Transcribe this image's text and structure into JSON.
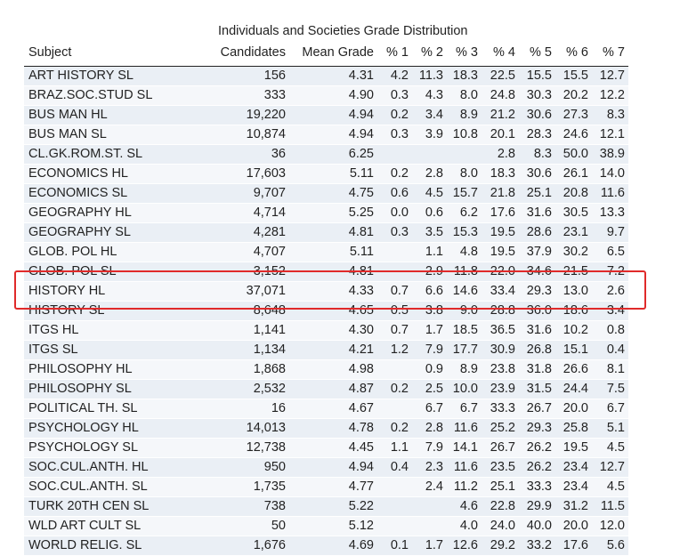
{
  "title": "Individuals and Societies Grade Distribution",
  "headers": [
    "Subject",
    "Candidates",
    "Mean Grade",
    "% 1",
    "% 2",
    "% 3",
    "% 4",
    "% 5",
    "% 6",
    "% 7"
  ],
  "rows": [
    [
      "ART HISTORY SL",
      "156",
      "4.31",
      "4.2",
      "11.3",
      "18.3",
      "22.5",
      "15.5",
      "15.5",
      "12.7"
    ],
    [
      "BRAZ.SOC.STUD SL",
      "333",
      "4.90",
      "0.3",
      "4.3",
      "8.0",
      "24.8",
      "30.3",
      "20.2",
      "12.2"
    ],
    [
      "BUS MAN HL",
      "19,220",
      "4.94",
      "0.2",
      "3.4",
      "8.9",
      "21.2",
      "30.6",
      "27.3",
      "8.3"
    ],
    [
      "BUS MAN SL",
      "10,874",
      "4.94",
      "0.3",
      "3.9",
      "10.8",
      "20.1",
      "28.3",
      "24.6",
      "12.1"
    ],
    [
      "CL.GK.ROM.ST. SL",
      "36",
      "6.25",
      "",
      "",
      "",
      "2.8",
      "8.3",
      "50.0",
      "38.9"
    ],
    [
      "ECONOMICS HL",
      "17,603",
      "5.11",
      "0.2",
      "2.8",
      "8.0",
      "18.3",
      "30.6",
      "26.1",
      "14.0"
    ],
    [
      "ECONOMICS SL",
      "9,707",
      "4.75",
      "0.6",
      "4.5",
      "15.7",
      "21.8",
      "25.1",
      "20.8",
      "11.6"
    ],
    [
      "GEOGRAPHY HL",
      "4,714",
      "5.25",
      "0.0",
      "0.6",
      "6.2",
      "17.6",
      "31.6",
      "30.5",
      "13.3"
    ],
    [
      "GEOGRAPHY SL",
      "4,281",
      "4.81",
      "0.3",
      "3.5",
      "15.3",
      "19.5",
      "28.6",
      "23.1",
      "9.7"
    ],
    [
      "GLOB. POL HL",
      "4,707",
      "5.11",
      "",
      "1.1",
      "4.8",
      "19.5",
      "37.9",
      "30.2",
      "6.5"
    ],
    [
      "GLOB. POL SL",
      "3,152",
      "4.81",
      "",
      "2.9",
      "11.8",
      "22.0",
      "34.6",
      "21.5",
      "7.2"
    ],
    [
      "HISTORY HL",
      "37,071",
      "4.33",
      "0.7",
      "6.6",
      "14.6",
      "33.4",
      "29.3",
      "13.0",
      "2.6"
    ],
    [
      "HISTORY SL",
      "8,648",
      "4.65",
      "0.5",
      "3.8",
      "9.0",
      "28.8",
      "36.0",
      "18.6",
      "3.4"
    ],
    [
      "ITGS HL",
      "1,141",
      "4.30",
      "0.7",
      "1.7",
      "18.5",
      "36.5",
      "31.6",
      "10.2",
      "0.8"
    ],
    [
      "ITGS SL",
      "1,134",
      "4.21",
      "1.2",
      "7.9",
      "17.7",
      "30.9",
      "26.8",
      "15.1",
      "0.4"
    ],
    [
      "PHILOSOPHY HL",
      "1,868",
      "4.98",
      "",
      "0.9",
      "8.9",
      "23.8",
      "31.8",
      "26.6",
      "8.1"
    ],
    [
      "PHILOSOPHY SL",
      "2,532",
      "4.87",
      "0.2",
      "2.5",
      "10.0",
      "23.9",
      "31.5",
      "24.4",
      "7.5"
    ],
    [
      "POLITICAL TH. SL",
      "16",
      "4.67",
      "",
      "6.7",
      "6.7",
      "33.3",
      "26.7",
      "20.0",
      "6.7"
    ],
    [
      "PSYCHOLOGY HL",
      "14,013",
      "4.78",
      "0.2",
      "2.8",
      "11.6",
      "25.2",
      "29.3",
      "25.8",
      "5.1"
    ],
    [
      "PSYCHOLOGY SL",
      "12,738",
      "4.45",
      "1.1",
      "7.9",
      "14.1",
      "26.7",
      "26.2",
      "19.5",
      "4.5"
    ],
    [
      "SOC.CUL.ANTH. HL",
      "950",
      "4.94",
      "0.4",
      "2.3",
      "11.6",
      "23.5",
      "26.2",
      "23.4",
      "12.7"
    ],
    [
      "SOC.CUL.ANTH. SL",
      "1,735",
      "4.77",
      "",
      "2.4",
      "11.2",
      "25.1",
      "33.3",
      "23.4",
      "4.5"
    ],
    [
      "TURK 20TH CEN SL",
      "738",
      "5.22",
      "",
      "",
      "4.6",
      "22.8",
      "29.9",
      "31.2",
      "11.5"
    ],
    [
      "WLD ART CULT SL",
      "50",
      "5.12",
      "",
      "",
      "4.0",
      "24.0",
      "40.0",
      "20.0",
      "12.0"
    ],
    [
      "WORLD RELIG. SL",
      "1,676",
      "4.69",
      "0.1",
      "1.7",
      "12.6",
      "29.2",
      "33.2",
      "17.6",
      "5.6"
    ]
  ],
  "highlight": {
    "rows": [
      "HISTORY HL",
      "HISTORY SL"
    ],
    "color": "#e02a2a"
  },
  "colors": {
    "row_odd": "#eaeff5",
    "row_even": "#f5f7fa",
    "text": "#222222"
  }
}
